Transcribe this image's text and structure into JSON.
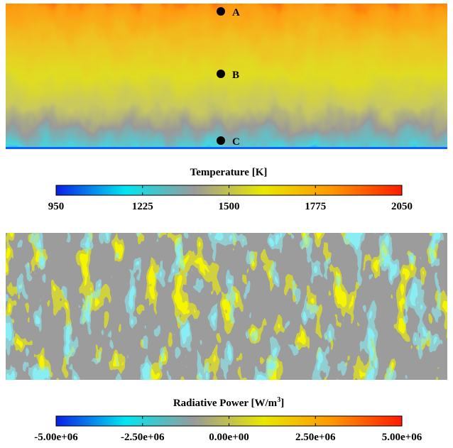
{
  "panels": [
    {
      "colorbar": {
        "title": "Temperature [K]",
        "lim": [
          950,
          2050
        ],
        "ticks": [
          950,
          1225,
          1500,
          1775,
          2050
        ]
      },
      "points": [
        {
          "label": "A"
        },
        {
          "label": "B"
        },
        {
          "label": "C"
        }
      ]
    },
    {
      "colorbar": {
        "title": "Radiative Power [W/m",
        "title_sup": "3",
        "title_end": "]",
        "lim": [
          -5000000,
          5000000
        ],
        "ticks": [
          {
            "value": -5000000,
            "label": "-5.00e+06"
          },
          {
            "value": -2500000,
            "label": "-2.50e+06"
          },
          {
            "value": 0,
            "label": "0.00e+00"
          },
          {
            "value": 2500000,
            "label": "2.50e+06"
          },
          {
            "value": 5000000,
            "label": "5.00e+06"
          }
        ]
      }
    }
  ],
  "colormap": [
    "#0a1fe6",
    "#00e6f0",
    "#9a9a9a",
    "#e8e800",
    "#ff9500",
    "#ff1a00"
  ]
}
